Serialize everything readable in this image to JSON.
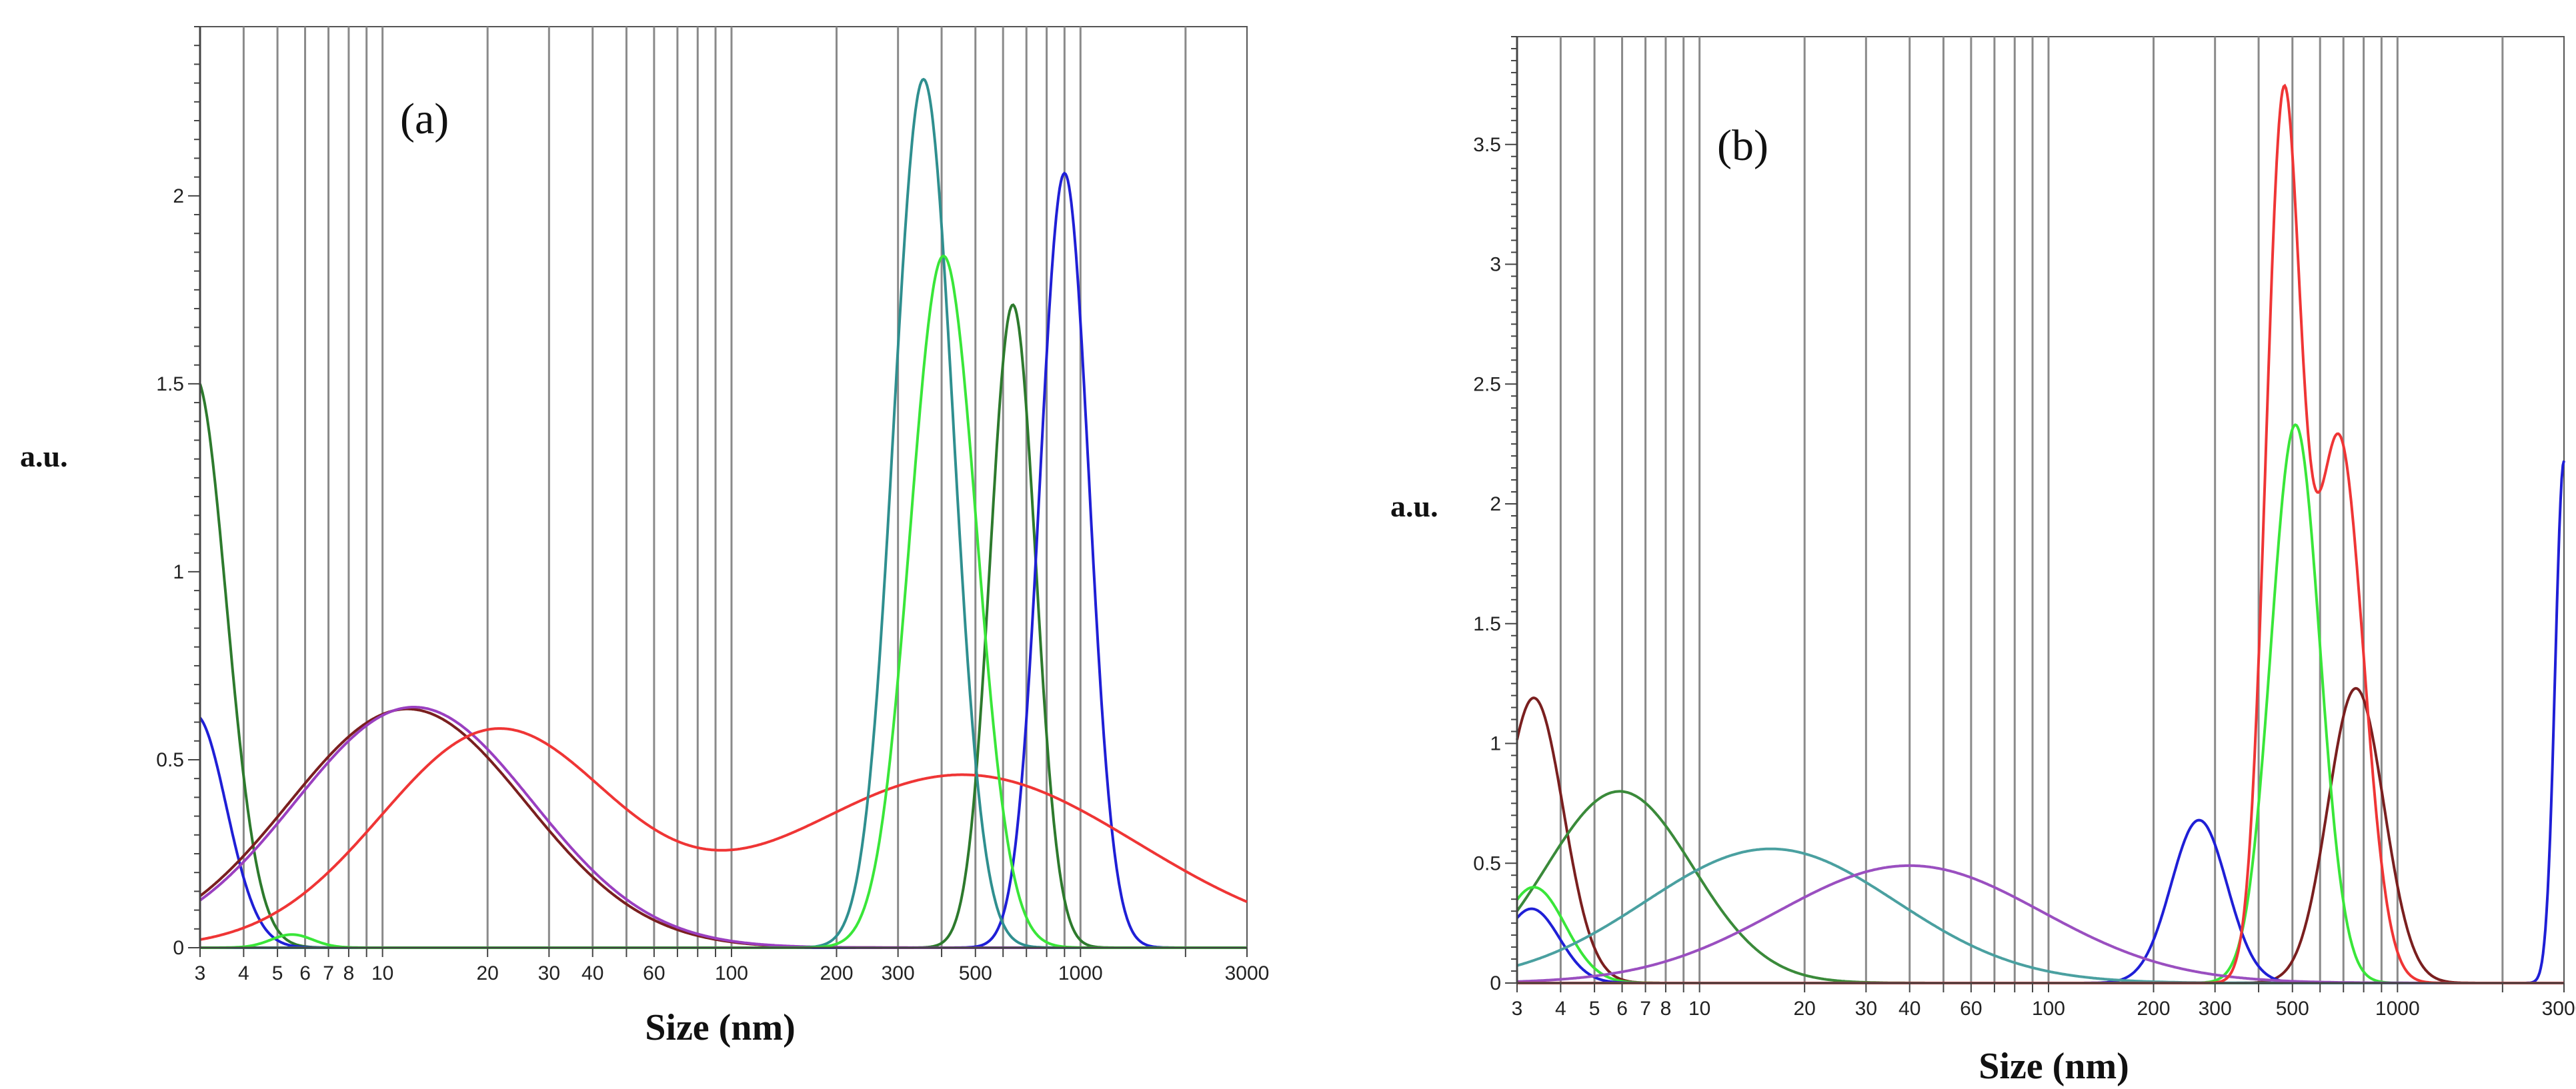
{
  "chart_data": [
    {
      "type": "line",
      "panel": "(a)",
      "xlabel": "Size (nm)",
      "ylabel": "a.u.",
      "xscale": "log",
      "xlim": [
        3,
        3000
      ],
      "ylim": [
        0,
        2.45
      ],
      "x_tick_labels": [
        "3",
        "4",
        "5",
        "6",
        "7",
        "8",
        "10",
        "20",
        "30",
        "40",
        "60",
        "100",
        "200",
        "300",
        "500",
        "1000",
        "3000"
      ],
      "x_tick_values": [
        3,
        4,
        5,
        6,
        7,
        8,
        10,
        20,
        30,
        40,
        60,
        100,
        200,
        300,
        500,
        1000,
        3000
      ],
      "y_tick_labels": [
        "0",
        "0.5",
        "1",
        "1.5",
        "2"
      ],
      "y_tick_values": [
        0,
        0.5,
        1,
        1.5,
        2
      ],
      "gridlines_x": [
        4,
        5,
        6,
        7,
        8,
        9,
        10,
        20,
        30,
        40,
        50,
        60,
        70,
        80,
        90,
        100,
        200,
        300,
        400,
        500,
        600,
        700,
        800,
        900,
        1000,
        2000
      ],
      "series": [
        {
          "name": "dark green",
          "color": "#2d7a2d",
          "peaks": [
            {
              "center": 2.9,
              "height": 1.52,
              "sigma": 0.09
            },
            {
              "center": 640,
              "height": 1.71,
              "sigma": 0.065
            }
          ]
        },
        {
          "name": "blue",
          "color": "#1f1fd6",
          "peaks": [
            {
              "center": 2.9,
              "height": 0.62,
              "sigma": 0.09
            },
            {
              "center": 900,
              "height": 2.06,
              "sigma": 0.07
            }
          ]
        },
        {
          "name": "dark red",
          "color": "#7a1f1f",
          "peaks": [
            {
              "center": 11.8,
              "height": 0.635,
              "sigma": 0.34
            }
          ]
        },
        {
          "name": "purple",
          "color": "#9a3fc0",
          "peaks": [
            {
              "center": 12.3,
              "height": 0.64,
              "sigma": 0.34
            }
          ]
        },
        {
          "name": "red",
          "color": "#ef3535",
          "peaks": [
            {
              "center": 21,
              "height": 0.57,
              "sigma": 0.33
            },
            {
              "center": 460,
              "height": 0.46,
              "sigma": 0.5
            }
          ]
        },
        {
          "name": "teal",
          "color": "#2f8f8f",
          "peaks": [
            {
              "center": 355,
              "height": 2.31,
              "sigma": 0.085
            }
          ]
        },
        {
          "name": "light green",
          "color": "#39e639",
          "peaks": [
            {
              "center": 5.5,
              "height": 0.035,
              "sigma": 0.06
            },
            {
              "center": 405,
              "height": 1.84,
              "sigma": 0.095
            }
          ]
        }
      ]
    },
    {
      "type": "line",
      "panel": "(b)",
      "xlabel": "Size (nm)",
      "ylabel": "a.u.",
      "xscale": "log",
      "xlim": [
        3,
        3000
      ],
      "ylim": [
        0,
        3.95
      ],
      "x_tick_labels": [
        "3",
        "4",
        "5",
        "6",
        "7",
        "8",
        "10",
        "20",
        "30",
        "40",
        "60",
        "100",
        "200",
        "300",
        "500",
        "1000",
        "3000"
      ],
      "x_tick_values": [
        3,
        4,
        5,
        6,
        7,
        8,
        10,
        20,
        30,
        40,
        60,
        100,
        200,
        300,
        500,
        1000,
        3000
      ],
      "y_tick_labels": [
        "0",
        "0.5",
        "1",
        "1.5",
        "2",
        "2.5",
        "3",
        "3.5"
      ],
      "y_tick_values": [
        0,
        0.5,
        1,
        1.5,
        2,
        2.5,
        3,
        3.5
      ],
      "gridlines_x": [
        4,
        5,
        6,
        7,
        8,
        9,
        10,
        20,
        30,
        40,
        50,
        60,
        70,
        80,
        90,
        100,
        200,
        300,
        400,
        500,
        600,
        700,
        800,
        900,
        1000,
        2000
      ],
      "series": [
        {
          "name": "dark red",
          "color": "#7a1f1f",
          "peaks": [
            {
              "center": 3.35,
              "height": 1.19,
              "sigma": 0.085
            },
            {
              "center": 760,
              "height": 1.23,
              "sigma": 0.08
            }
          ]
        },
        {
          "name": "green",
          "color": "#3a8a3a",
          "peaks": [
            {
              "center": 5.9,
              "height": 0.8,
              "sigma": 0.21
            }
          ]
        },
        {
          "name": "light green",
          "color": "#39e639",
          "peaks": [
            {
              "center": 3.35,
              "height": 0.4,
              "sigma": 0.09
            },
            {
              "center": 510,
              "height": 2.33,
              "sigma": 0.07
            }
          ]
        },
        {
          "name": "blue",
          "color": "#1f1fd6",
          "peaks": [
            {
              "center": 3.3,
              "height": 0.31,
              "sigma": 0.08
            },
            {
              "center": 270,
              "height": 0.68,
              "sigma": 0.08
            },
            {
              "center": 3000,
              "height": 2.18,
              "sigma": 0.025
            }
          ]
        },
        {
          "name": "teal",
          "color": "#4aa0a0",
          "peaks": [
            {
              "center": 16,
              "height": 0.56,
              "sigma": 0.36
            }
          ]
        },
        {
          "name": "purple",
          "color": "#9a4fc0",
          "peaks": [
            {
              "center": 40,
              "height": 0.49,
              "sigma": 0.38
            }
          ]
        },
        {
          "name": "red",
          "color": "#ef3535",
          "peaks": [
            {
              "center": 470,
              "height": 3.57,
              "sigma": 0.05
            },
            {
              "center": 680,
              "height": 2.27,
              "sigma": 0.07
            }
          ]
        }
      ]
    }
  ]
}
